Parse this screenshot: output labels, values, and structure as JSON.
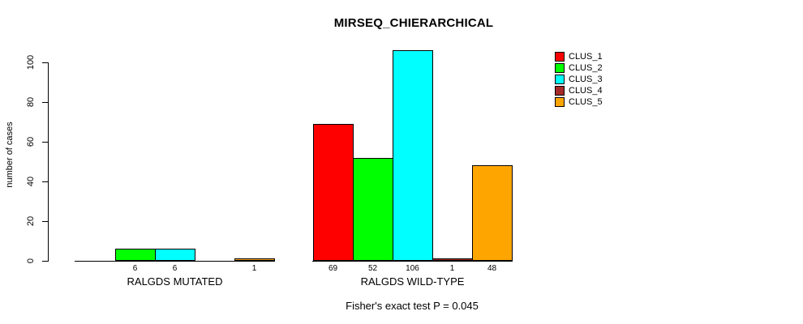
{
  "title": "MIRSEQ_CHIERARCHICAL",
  "chart_data": {
    "type": "bar",
    "title": "MIRSEQ_CHIERARCHICAL",
    "ylabel": "number of cases",
    "xlabel": "",
    "ylim": [
      0,
      106
    ],
    "yticks": [
      0,
      20,
      40,
      60,
      80,
      100
    ],
    "grid": false,
    "categories": [
      "RALGDS MUTATED",
      "RALGDS WILD-TYPE"
    ],
    "series": [
      {
        "name": "CLUS_1",
        "color": "#ff0000",
        "values": [
          0,
          69
        ]
      },
      {
        "name": "CLUS_2",
        "color": "#00ff00",
        "values": [
          6,
          52
        ]
      },
      {
        "name": "CLUS_3",
        "color": "#00ffff",
        "values": [
          6,
          106
        ]
      },
      {
        "name": "CLUS_4",
        "color": "#a52a2a",
        "values": [
          0,
          1
        ]
      },
      {
        "name": "CLUS_5",
        "color": "#ffa500",
        "values": [
          1,
          48
        ]
      }
    ],
    "bar_value_labels": [
      "6",
      "6",
      "1",
      "69",
      "52",
      "106",
      "1",
      "48"
    ],
    "value_labels_hide_zero": true,
    "legend_position": "right",
    "legend_entries": [
      "CLUS_1",
      "CLUS_2",
      "CLUS_3",
      "CLUS_4",
      "CLUS_5"
    ],
    "annotation": "Fisher's exact test P = 0.045",
    "axis_color": "#000000",
    "background_color": "#ffffff"
  }
}
